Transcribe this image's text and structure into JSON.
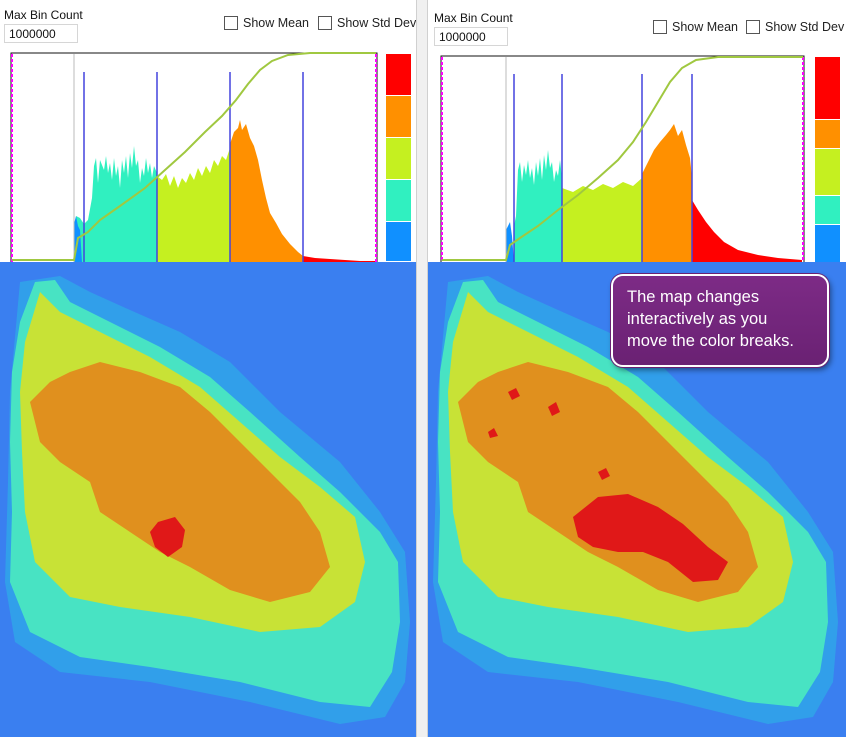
{
  "panels": [
    {
      "max_bin_label": "Max Bin Count",
      "max_bin_value": "1000000",
      "show_mean_label": "Show Mean",
      "show_std_label": "Show Std Dev"
    },
    {
      "max_bin_label": "Max Bin Count",
      "max_bin_value": "1000000",
      "show_mean_label": "Show Mean",
      "show_std_label": "Show Std Dev",
      "callout_lines": [
        "The map changes",
        "interactively as you",
        "move the color breaks."
      ]
    }
  ],
  "colors": {
    "ramp": [
      "#ff0000",
      "#ff9000",
      "#c5f020",
      "#30f0c0",
      "#1090ff"
    ],
    "background_map": "#3a7ff0",
    "cdf_line": "#a0c840",
    "break_line": "#4444dd",
    "edge_marker": "#ff00ff",
    "callout_fill": "#6e2378"
  }
}
